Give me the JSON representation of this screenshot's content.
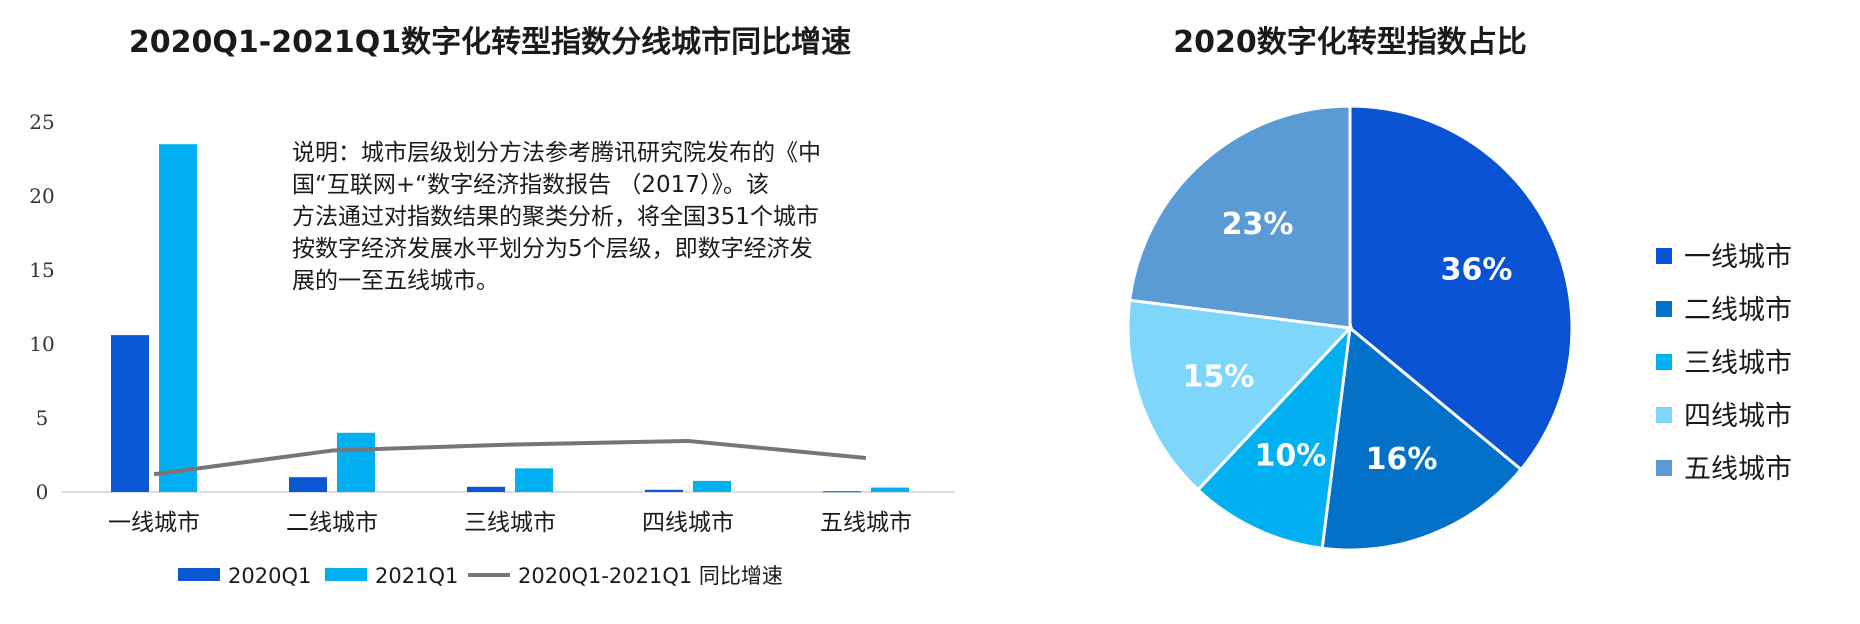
{
  "chart_data": [
    {
      "type": "bar",
      "title": "2020Q1-2021Q1数字化转型指数分线城市同比增速",
      "categories": [
        "一线城市",
        "二线城市",
        "三线城市",
        "四线城市",
        "五线城市"
      ],
      "ylim": [
        0,
        25
      ],
      "yticks": [
        0,
        5,
        10,
        15,
        20,
        25
      ],
      "series": [
        {
          "name": "2020Q1",
          "type": "bar",
          "color": "#0a57d6",
          "values": [
            10.6,
            1.0,
            0.35,
            0.15,
            0.05
          ]
        },
        {
          "name": "2021Q1",
          "type": "bar",
          "color": "#00b0f0",
          "values": [
            23.5,
            4.0,
            1.6,
            0.75,
            0.3
          ]
        },
        {
          "name": "2020Q1-2021Q1 同比增速",
          "type": "line",
          "color": "#767676",
          "values": [
            1.2,
            2.8,
            3.2,
            3.45,
            2.3
          ]
        }
      ],
      "annotation": [
        "说明：城市层级划分方法参考腾讯研究院发布的《中",
        "国“互联网+“数字经济指数报告 （2017）》。该",
        "方法通过对指数结果的聚类分析，将全国351个城市",
        "按数字经济发展水平划分为5个层级，即数字经济发",
        "展的一至五线城市。"
      ]
    },
    {
      "type": "pie",
      "title": "2020数字化转型指数占比",
      "labels": [
        "一线城市",
        "二线城市",
        "三线城市",
        "四线城市",
        "五线城市"
      ],
      "values": [
        36,
        16,
        10,
        15,
        23
      ],
      "value_labels": [
        "36%",
        "16%",
        "10%",
        "15%",
        "23%"
      ],
      "colors": [
        "#0a52d4",
        "#0371c8",
        "#00b0f0",
        "#7fd6fb",
        "#5b9bd5"
      ],
      "legend_position": "right"
    }
  ]
}
